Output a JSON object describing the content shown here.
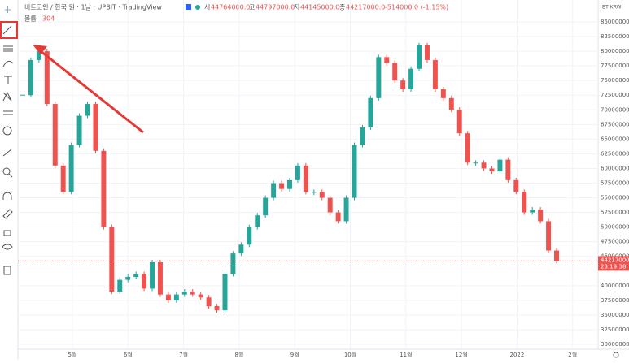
{
  "header": {
    "symbol": "비트코인 / 한국 원 · 1날 · UPBIT · TradingView",
    "o_label": "시",
    "o": "44764000.0",
    "h_label": "고",
    "h": "44797000.0",
    "l_label": "저",
    "l": "44145000.0",
    "c_label": "종",
    "c": "44217000.0",
    "change": "-514000.0 (-1.15%)",
    "volume_label": "볼륨",
    "volume": "304"
  },
  "scale_label": "BT KRW",
  "chart_data": {
    "type": "candlestick",
    "closes": [
      72500000,
      78500000,
      80000000,
      71000000,
      60500000,
      56000000,
      64000000,
      69000000,
      71000000,
      63000000,
      50000000,
      39000000,
      41000000,
      41500000,
      42000000,
      39500000,
      44000000,
      38500000,
      37500000,
      38500000,
      39000000,
      38500000,
      38000000,
      36500000,
      35800000,
      42000000,
      45500000,
      47000000,
      50000000,
      52000000,
      55000000,
      57500000,
      56500000,
      58000000,
      60500000,
      56000000,
      56000000,
      55000000,
      52500000,
      51000000,
      55000000,
      64000000,
      67000000,
      72000000,
      79000000,
      78000000,
      75000000,
      73500000,
      77000000,
      81000000,
      78500000,
      73500000,
      72000000,
      70000000,
      66000000,
      61000000,
      61000000,
      60000000,
      59500000,
      61500000,
      58000000,
      56000000,
      52500000,
      53000000,
      51000000,
      46000000,
      44217000
    ],
    "up_color": "#26a69a",
    "down_color": "#ef5350",
    "ylim": [
      30000000,
      85000000
    ],
    "yticks": [
      {
        "value": 85000000,
        "label": "85000000.0"
      },
      {
        "value": 82500000,
        "label": "82500000.0"
      },
      {
        "value": 80000000,
        "label": "80000000.0"
      },
      {
        "value": 77500000,
        "label": "77500000.0"
      },
      {
        "value": 75000000,
        "label": "75000000.0"
      },
      {
        "value": 72500000,
        "label": "72500000.0"
      },
      {
        "value": 70000000,
        "label": "70000000.0"
      },
      {
        "value": 67500000,
        "label": "67500000.0"
      },
      {
        "value": 65000000,
        "label": "65000000.0"
      },
      {
        "value": 62500000,
        "label": "62500000.0"
      },
      {
        "value": 60000000,
        "label": "60000000.0"
      },
      {
        "value": 57500000,
        "label": "57500000.0"
      },
      {
        "value": 55000000,
        "label": "55000000.0"
      },
      {
        "value": 52500000,
        "label": "52500000.0"
      },
      {
        "value": 50000000,
        "label": "50000000.0"
      },
      {
        "value": 47500000,
        "label": "47500000.0"
      },
      {
        "value": 45000000,
        "label": "45000000.0"
      },
      {
        "value": 40000000,
        "label": "40000000.0"
      },
      {
        "value": 37500000,
        "label": "37500000.0"
      },
      {
        "value": 35000000,
        "label": "35000000.0"
      },
      {
        "value": 32500000,
        "label": "32500000.0"
      },
      {
        "value": 30000000,
        "label": "30000000.0"
      }
    ],
    "months": [
      "5월",
      "6월",
      "7월",
      "8월",
      "9월",
      "10월",
      "11월",
      "12월",
      "2022",
      "2월"
    ],
    "last_price": {
      "value": 44217000,
      "label": "44217000.0",
      "time": "23:19:38"
    },
    "grid": true
  }
}
